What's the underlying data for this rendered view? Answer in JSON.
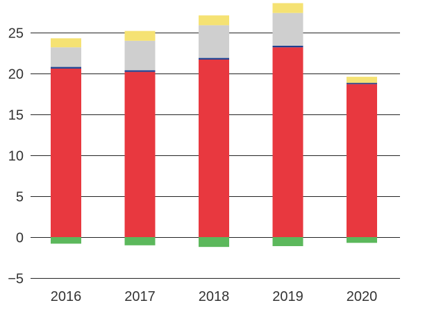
{
  "chart_data": {
    "type": "bar",
    "stacked": true,
    "title": "",
    "xlabel": "",
    "ylabel": "",
    "categories": [
      "2016",
      "2017",
      "2018",
      "2019",
      "2020"
    ],
    "y_ticks": [
      -5,
      0,
      5,
      10,
      15,
      20,
      25
    ],
    "y_tick_labels": [
      "−5",
      "0",
      "5",
      "10",
      "15",
      "20",
      "25"
    ],
    "ylim": [
      -5,
      28.5
    ],
    "grid": true,
    "legend": "none",
    "series": [
      {
        "name": "green (negative)",
        "color": "#5cb85c",
        "values": [
          -0.8,
          -1.0,
          -1.2,
          -1.1,
          -0.7
        ]
      },
      {
        "name": "red",
        "color": "#e8383f",
        "values": [
          20.6,
          20.2,
          21.7,
          23.2,
          18.7
        ]
      },
      {
        "name": "blue",
        "color": "#1f3f8f",
        "values": [
          0.2,
          0.2,
          0.2,
          0.2,
          0.15
        ]
      },
      {
        "name": "gray",
        "color": "#cfcfcf",
        "values": [
          2.4,
          3.6,
          4.0,
          4.0,
          0.0
        ]
      },
      {
        "name": "yellow",
        "color": "#f5e273",
        "values": [
          1.1,
          1.2,
          1.2,
          1.2,
          0.75
        ]
      }
    ]
  }
}
